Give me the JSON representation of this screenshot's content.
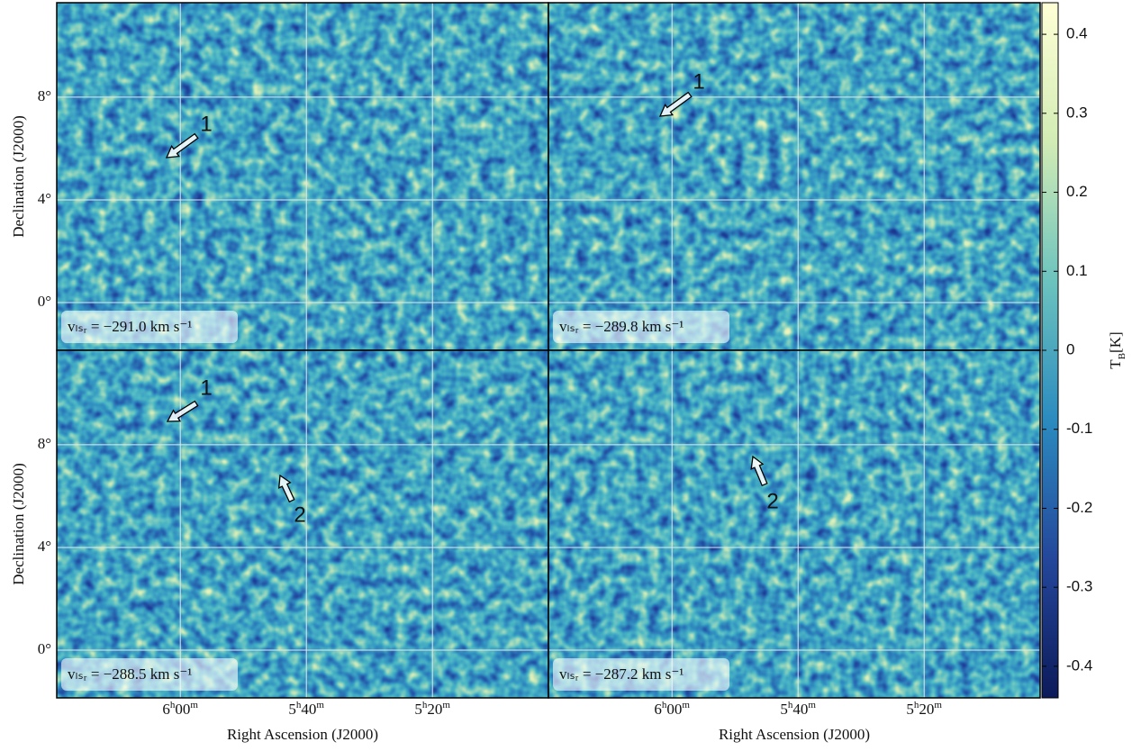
{
  "chart_data": {
    "type": "image-grid",
    "xlabel": "Right Ascension (J2000)",
    "ylabel": "Declination (J2000)",
    "xlim": [
      379.6,
      301.6
    ],
    "xticks": [
      {
        "value": 360,
        "label": "6h00m"
      },
      {
        "value": 340,
        "label": "5h40m"
      },
      {
        "value": 320,
        "label": "5h20m"
      }
    ],
    "ylim": [
      -1.86,
      11.68
    ],
    "yticks": [
      {
        "value": 8,
        "label": "8°"
      },
      {
        "value": 4,
        "label": "4°"
      },
      {
        "value": 0,
        "label": "0°"
      }
    ],
    "grid": true,
    "panels": [
      {
        "label": "vₗₛᵣ = −291.0 km s⁻¹",
        "annotations": [
          {
            "text": "1"
          }
        ]
      },
      {
        "label": "vₗₛᵣ = −289.8 km s⁻¹",
        "annotations": [
          {
            "text": "1"
          }
        ]
      },
      {
        "label": "vₗₛᵣ = −288.5 km s⁻¹",
        "annotations": [
          {
            "text": "1"
          },
          {
            "text": "2"
          }
        ]
      },
      {
        "label": "vₗₛᵣ = −287.2 km s⁻¹",
        "annotations": [
          {
            "text": "2"
          }
        ]
      }
    ],
    "colorbar": {
      "label": "TB[K]",
      "clim": [
        -0.44,
        0.44
      ],
      "ticks": [
        0.4,
        0.3,
        0.2,
        0.1,
        0,
        -0.1,
        -0.2,
        -0.3,
        -0.4
      ]
    }
  }
}
